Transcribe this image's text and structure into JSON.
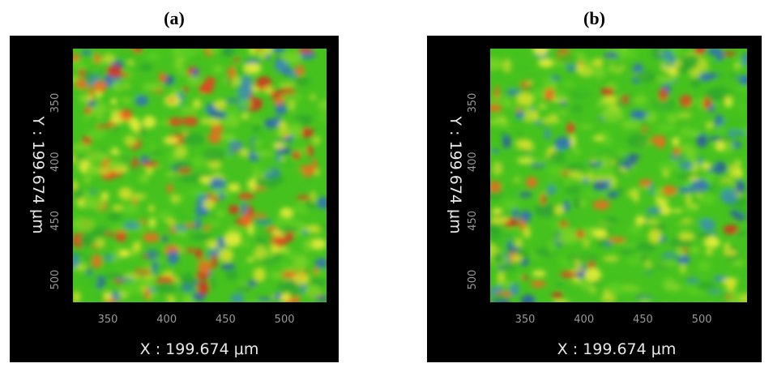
{
  "panels": [
    {
      "label": "(a)",
      "y_axis_title": "Y : 199.674 μm",
      "x_axis_title": "X : 199.674 μm",
      "yticks": [
        350,
        400,
        450,
        500
      ],
      "xticks": [
        350,
        400,
        450,
        500
      ]
    },
    {
      "label": "(b)",
      "y_axis_title": "Y : 199.674 μm",
      "x_axis_title": "X : 199.674 μm",
      "yticks": [
        350,
        400,
        450,
        500
      ],
      "xticks": [
        350,
        400,
        450,
        500
      ]
    }
  ]
}
